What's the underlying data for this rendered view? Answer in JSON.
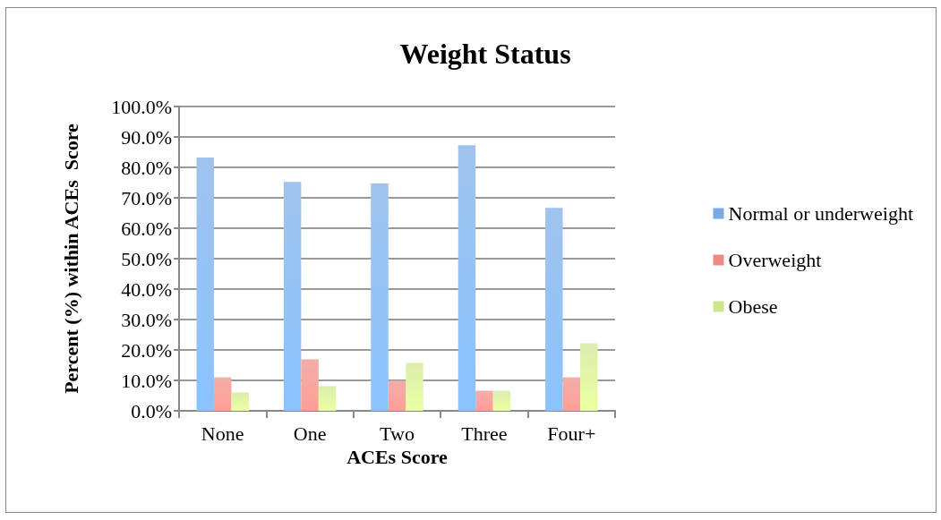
{
  "chart_data": {
    "type": "bar",
    "title": "Weight Status",
    "xlabel": "ACEs Score",
    "ylabel": "Percent (%) within ACEs  Score",
    "categories": [
      "None",
      "One",
      "Two",
      "Three",
      "Four+"
    ],
    "series": [
      {
        "name": "Normal or underweight",
        "color": "#78aae6",
        "values": [
          83.2,
          75.2,
          74.7,
          87.3,
          66.7
        ]
      },
      {
        "name": "Overweight",
        "color": "#ee8a84",
        "values": [
          11.0,
          16.9,
          9.9,
          6.6,
          11.0
        ]
      },
      {
        "name": "Obese",
        "color": "#cde68c",
        "values": [
          6.0,
          8.1,
          15.7,
          6.6,
          22.2
        ]
      }
    ],
    "ylim": [
      0,
      100
    ],
    "yticks": [
      {
        "value": 0,
        "label": "0.0%"
      },
      {
        "value": 10,
        "label": "10.0%"
      },
      {
        "value": 20,
        "label": "20.0%"
      },
      {
        "value": 30,
        "label": "30.0%"
      },
      {
        "value": 40,
        "label": "40.0%"
      },
      {
        "value": 50,
        "label": "50.0%"
      },
      {
        "value": 60,
        "label": "60.0%"
      },
      {
        "value": 70,
        "label": "70.0%"
      },
      {
        "value": 80,
        "label": "80.0%"
      },
      {
        "value": 90,
        "label": "90.0%"
      },
      {
        "value": 100,
        "label": "100.0%"
      }
    ],
    "grid": "y",
    "legend": "right"
  }
}
